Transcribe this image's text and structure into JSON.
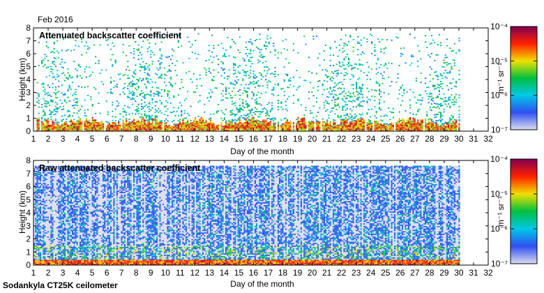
{
  "header": {
    "period": "Feb 2016"
  },
  "footer": {
    "instrument": "Sodankyla CT25K ceilometer"
  },
  "colorscale": {
    "stops": [
      "#dcdcf0",
      "#3050f0",
      "#00c8e6",
      "#00c040",
      "#f0e000",
      "#ff2000",
      "#800050"
    ],
    "ticks": [
      "10⁻⁴",
      "10⁻⁵",
      "10⁻⁶",
      "10⁻⁷"
    ],
    "unit_label": "m⁻¹ sr⁻¹",
    "log_scale": true,
    "range": [
      1e-07,
      0.0001
    ]
  },
  "chart_data": [
    {
      "type": "heatmap",
      "title": "Attenuated backscatter coefficient",
      "xlabel": "Day of the month",
      "ylabel": "Height (km)",
      "xlim": [
        1,
        32
      ],
      "ylim": [
        0,
        8
      ],
      "x_ticks": [
        "1",
        "2",
        "3",
        "4",
        "5",
        "6",
        "7",
        "8",
        "9",
        "10",
        "11",
        "12",
        "13",
        "14",
        "15",
        "16",
        "17",
        "18",
        "19",
        "20",
        "21",
        "22",
        "23",
        "24",
        "25",
        "26",
        "27",
        "28",
        "29",
        "30",
        "31",
        "32"
      ],
      "y_ticks": [
        "0",
        "1",
        "2",
        "3",
        "4",
        "5",
        "6",
        "7",
        "8"
      ],
      "data_extent_days": [
        1,
        30
      ],
      "zlabel": "m⁻¹ sr⁻¹"
    },
    {
      "type": "heatmap",
      "title": "Raw attenuated backscatter coefficient",
      "xlabel": "Day of the month",
      "ylabel": "Height (km)",
      "xlim": [
        1,
        32
      ],
      "ylim": [
        0,
        8
      ],
      "x_ticks": [
        "1",
        "2",
        "3",
        "4",
        "5",
        "6",
        "7",
        "8",
        "9",
        "10",
        "11",
        "12",
        "13",
        "14",
        "15",
        "16",
        "17",
        "18",
        "19",
        "20",
        "21",
        "22",
        "23",
        "24",
        "25",
        "26",
        "27",
        "28",
        "29",
        "30",
        "31",
        "32"
      ],
      "y_ticks": [
        "0",
        "1",
        "2",
        "3",
        "4",
        "5",
        "6",
        "7",
        "8"
      ],
      "data_extent_days": [
        1,
        30
      ],
      "zlabel": "m⁻¹ sr⁻¹"
    }
  ]
}
